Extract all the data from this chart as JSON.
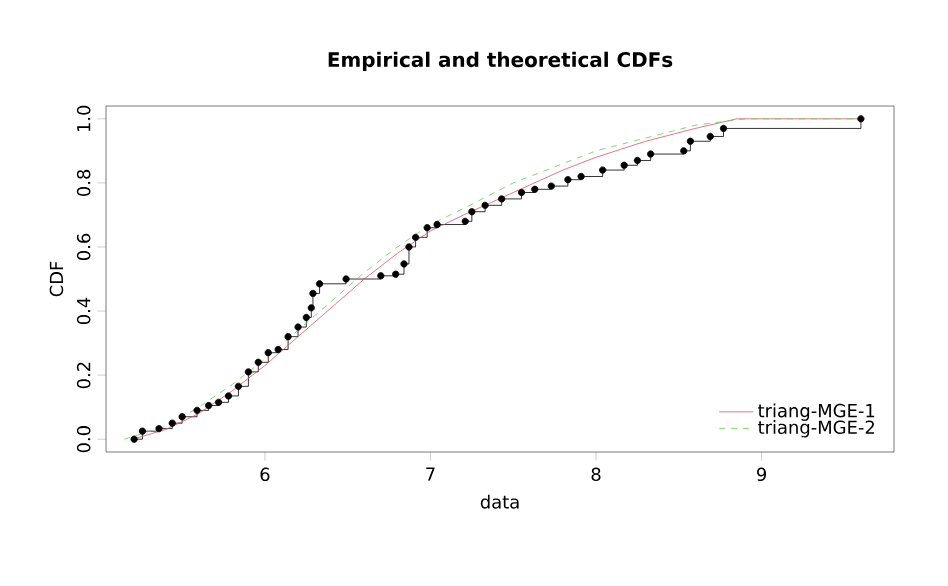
{
  "chart_data": {
    "type": "line",
    "title": "Empirical and theoretical CDFs",
    "xlabel": "data",
    "ylabel": "CDF",
    "xlim": [
      5.04,
      9.8
    ],
    "ylim": [
      -0.04,
      1.04
    ],
    "xticks": [
      6,
      7,
      8,
      9
    ],
    "yticks": [
      {
        "value": 0,
        "label": "0.0"
      },
      {
        "value": 0.2,
        "label": "0.2"
      },
      {
        "value": 0.4,
        "label": "0.4"
      },
      {
        "value": 0.6,
        "label": "0.6"
      },
      {
        "value": 0.8,
        "label": "0.8"
      },
      {
        "value": 1,
        "label": "1.0"
      }
    ],
    "grid": false,
    "legend": "bottom right",
    "series": [
      {
        "type": "step",
        "color": "#000000",
        "marker": "circle",
        "line_style": "solid",
        "x": [
          5.21,
          5.26,
          5.36,
          5.44,
          5.5,
          5.59,
          5.66,
          5.72,
          5.78,
          5.84,
          5.9,
          5.96,
          6.02,
          6.08,
          6.14,
          6.2,
          6.25,
          6.28,
          6.29,
          6.33,
          6.49,
          6.7,
          6.79,
          6.84,
          6.87,
          6.91,
          6.98,
          7.04,
          7.21,
          7.25,
          7.33,
          7.43,
          7.55,
          7.63,
          7.73,
          7.83,
          7.91,
          8.04,
          8.17,
          8.25,
          8.33,
          8.53,
          8.57,
          8.69,
          8.77,
          9.6
        ],
        "values": [
          0,
          0.025,
          0.033,
          0.05,
          0.07,
          0.09,
          0.105,
          0.115,
          0.135,
          0.165,
          0.21,
          0.24,
          0.27,
          0.28,
          0.32,
          0.35,
          0.38,
          0.41,
          0.455,
          0.485,
          0.5,
          0.51,
          0.515,
          0.547,
          0.6,
          0.63,
          0.66,
          0.67,
          0.68,
          0.71,
          0.73,
          0.75,
          0.77,
          0.78,
          0.79,
          0.81,
          0.82,
          0.84,
          0.855,
          0.87,
          0.89,
          0.9,
          0.93,
          0.945,
          0.97,
          1.0
        ]
      },
      {
        "name": "triang-MGE-1",
        "color": "#df536b",
        "marker": "none",
        "line_style": "solid",
        "x": [
          5.2,
          5.4,
          5.6,
          5.8,
          6.0,
          6.2,
          6.4,
          6.6,
          6.8,
          7.0,
          7.2,
          7.5,
          7.8,
          8.0,
          8.3,
          8.6,
          8.85,
          9.6
        ],
        "values": [
          0,
          0.03,
          0.08,
          0.15,
          0.23,
          0.32,
          0.41,
          0.5,
          0.58,
          0.65,
          0.7,
          0.77,
          0.84,
          0.88,
          0.93,
          0.97,
          1.0,
          1.0
        ]
      },
      {
        "name": "triang-MGE-2",
        "color": "#61d04f",
        "marker": "none",
        "line_style": "dashed",
        "x": [
          5.15,
          5.4,
          5.6,
          5.8,
          6.0,
          6.2,
          6.4,
          6.6,
          6.8,
          7.0,
          7.2,
          7.5,
          7.8,
          8.0,
          8.3,
          8.6,
          8.9,
          9.6
        ],
        "values": [
          0,
          0.04,
          0.1,
          0.17,
          0.25,
          0.34,
          0.43,
          0.52,
          0.6,
          0.67,
          0.72,
          0.8,
          0.86,
          0.9,
          0.94,
          0.98,
          1.0,
          1.0
        ]
      }
    ]
  }
}
